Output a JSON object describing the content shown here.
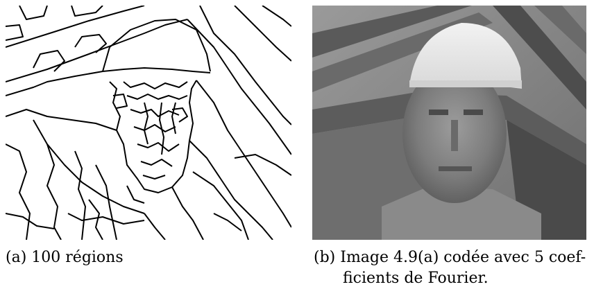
{
  "figure": {
    "panel_a": {
      "label": "(a)",
      "caption": "100 régions"
    },
    "panel_b": {
      "label": "(b)",
      "caption_line1": "Image 4.9(a) codée avec 5 coef-",
      "caption_line2": "ficients de Fourier."
    }
  }
}
